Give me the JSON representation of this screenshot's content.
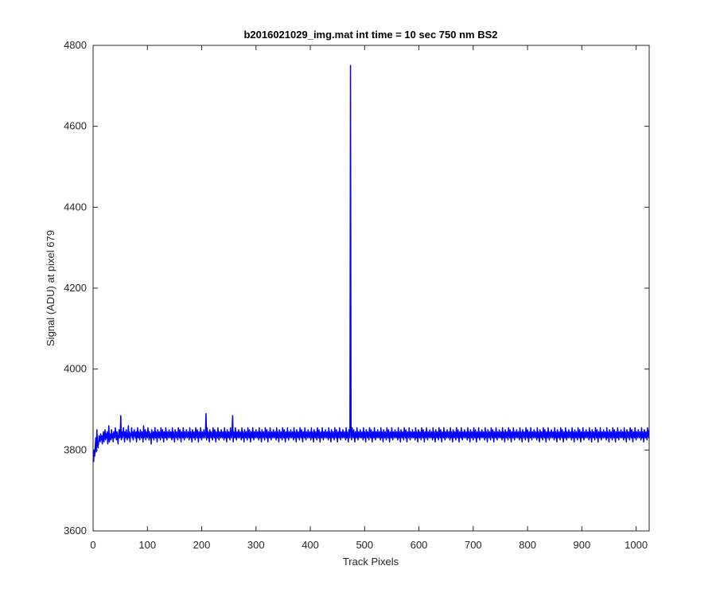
{
  "chart_data": {
    "type": "line",
    "title": "b2016021029_img.mat int time = 10 sec  750 nm BS2",
    "xlabel": "Track Pixels",
    "ylabel": "Signal (ADU) at pixel 679",
    "xlim": [
      0,
      1024
    ],
    "ylim": [
      3600,
      4800
    ],
    "xticks": [
      0,
      100,
      200,
      300,
      400,
      500,
      600,
      700,
      800,
      900,
      1000
    ],
    "yticks": [
      3600,
      3800,
      4000,
      4200,
      4400,
      4600,
      4800
    ],
    "grid": false,
    "legend": "none",
    "series": [
      {
        "color": "#0000ff",
        "x_start": 1,
        "x_step": 1,
        "values": [
          3770,
          3800,
          3785,
          3810,
          3830,
          3795,
          3850,
          3820,
          3805,
          3815,
          3835,
          3830,
          3820,
          3840,
          3825,
          3835,
          3815,
          3830,
          3845,
          3820,
          3835,
          3850,
          3825,
          3840,
          3830,
          3845,
          3815,
          3830,
          3860,
          3820,
          3840,
          3835,
          3825,
          3850,
          3830,
          3840,
          3820,
          3845,
          3835,
          3830,
          3855,
          3840,
          3825,
          3845,
          3830,
          3815,
          3840,
          3850,
          3830,
          3835,
          3885,
          3825,
          3845,
          3830,
          3840,
          3855,
          3835,
          3820,
          3845,
          3830,
          3850,
          3840,
          3825,
          3835,
          3860,
          3830,
          3845,
          3820,
          3840,
          3835,
          3855,
          3830,
          3845,
          3825,
          3840,
          3850,
          3835,
          3830,
          3845,
          3820,
          3840,
          3855,
          3830,
          3845,
          3835,
          3825,
          3850,
          3840,
          3830,
          3845,
          3835,
          3820,
          3860,
          3830,
          3840,
          3850,
          3825,
          3845,
          3835,
          3830,
          3855,
          3840,
          3825,
          3845,
          3830,
          3840,
          3815,
          3850,
          3835,
          3830,
          3845,
          3825,
          3840,
          3855,
          3830,
          3845,
          3835,
          3820,
          3850,
          3840,
          3830,
          3845,
          3835,
          3825,
          3855,
          3840,
          3830,
          3850,
          3835,
          3820,
          3845,
          3840,
          3830,
          3855,
          3835,
          3825,
          3845,
          3840,
          3830,
          3850,
          3835,
          3830,
          3845,
          3840,
          3825,
          3855,
          3830,
          3845,
          3835,
          3820,
          3850,
          3840,
          3830,
          3845,
          3835,
          3825,
          3855,
          3840,
          3830,
          3850,
          3835,
          3820,
          3845,
          3840,
          3830,
          3855,
          3835,
          3825,
          3845,
          3840,
          3830,
          3850,
          3835,
          3830,
          3845,
          3840,
          3825,
          3855,
          3830,
          3845,
          3835,
          3820,
          3850,
          3840,
          3830,
          3845,
          3835,
          3825,
          3855,
          3840,
          3830,
          3850,
          3835,
          3820,
          3845,
          3840,
          3830,
          3855,
          3835,
          3825,
          3845,
          3840,
          3830,
          3850,
          3835,
          3830,
          3845,
          3890,
          3825,
          3855,
          3830,
          3845,
          3835,
          3820,
          3850,
          3840,
          3830,
          3845,
          3835,
          3825,
          3855,
          3840,
          3830,
          3850,
          3835,
          3820,
          3845,
          3840,
          3830,
          3855,
          3835,
          3825,
          3845,
          3840,
          3830,
          3850,
          3835,
          3830,
          3845,
          3840,
          3825,
          3855,
          3830,
          3845,
          3835,
          3820,
          3850,
          3840,
          3830,
          3845,
          3835,
          3825,
          3855,
          3840,
          3830,
          3850,
          3885,
          3820,
          3845,
          3840,
          3830,
          3855,
          3835,
          3825,
          3845,
          3840,
          3830,
          3850,
          3835,
          3830,
          3845,
          3840,
          3825,
          3855,
          3830,
          3845,
          3835,
          3820,
          3850,
          3840,
          3830,
          3845,
          3835,
          3825,
          3855,
          3840,
          3830,
          3850,
          3835,
          3820,
          3845,
          3840,
          3830,
          3855,
          3835,
          3825,
          3845,
          3840,
          3830,
          3850,
          3835,
          3830,
          3845,
          3840,
          3825,
          3855,
          3830,
          3845,
          3835,
          3820,
          3850,
          3840,
          3830,
          3845,
          3835,
          3825,
          3855,
          3840,
          3830,
          3850,
          3835,
          3820,
          3845,
          3840,
          3830,
          3855,
          3835,
          3825,
          3845,
          3840,
          3830,
          3850,
          3835,
          3830,
          3845,
          3840,
          3825,
          3855,
          3830,
          3845,
          3835,
          3820,
          3850,
          3840,
          3830,
          3845,
          3835,
          3825,
          3855,
          3840,
          3830,
          3850,
          3835,
          3820,
          3845,
          3840,
          3830,
          3855,
          3835,
          3825,
          3845,
          3840,
          3830,
          3850,
          3835,
          3830,
          3845,
          3840,
          3825,
          3855,
          3830,
          3845,
          3835,
          3820,
          3850,
          3840,
          3830,
          3845,
          3835,
          3825,
          3855,
          3840,
          3830,
          3850,
          3835,
          3820,
          3845,
          3840,
          3830,
          3855,
          3835,
          3825,
          3845,
          3840,
          3830,
          3850,
          3835,
          3830,
          3845,
          3840,
          3825,
          3855,
          3830,
          3845,
          3835,
          3820,
          3850,
          3840,
          3830,
          3845,
          3835,
          3825,
          3855,
          3840,
          3830,
          3850,
          3835,
          3820,
          3845,
          3840,
          3830,
          3855,
          3835,
          3825,
          3845,
          3840,
          3830,
          3850,
          3835,
          3830,
          3845,
          3840,
          3825,
          3855,
          3830,
          3845,
          3835,
          3820,
          3850,
          3840,
          3830,
          3845,
          3835,
          3825,
          3855,
          3840,
          3830,
          3850,
          3835,
          3820,
          3845,
          3840,
          3830,
          3855,
          3835,
          3825,
          3845,
          3840,
          3830,
          3850,
          3835,
          3830,
          3845,
          3840,
          3825,
          3855,
          3830,
          3845,
          3835,
          3820,
          3850,
          3840,
          3830,
          4750,
          3850,
          3825,
          3855,
          3840,
          3830,
          3850,
          3835,
          3820,
          3845,
          3840,
          3830,
          3855,
          3835,
          3825,
          3845,
          3840,
          3830,
          3850,
          3835,
          3830,
          3845,
          3840,
          3825,
          3855,
          3830,
          3845,
          3835,
          3820,
          3850,
          3840,
          3830,
          3845,
          3835,
          3825,
          3855,
          3840,
          3830,
          3850,
          3835,
          3820,
          3845,
          3840,
          3830,
          3855,
          3835,
          3825,
          3845,
          3840,
          3830,
          3850,
          3835,
          3830,
          3845,
          3840,
          3825,
          3855,
          3830,
          3845,
          3835,
          3820,
          3850,
          3840,
          3830,
          3845,
          3835,
          3825,
          3855,
          3840,
          3830,
          3850,
          3835,
          3820,
          3845,
          3840,
          3830,
          3855,
          3835,
          3825,
          3845,
          3840,
          3830,
          3850,
          3835,
          3830,
          3845,
          3840,
          3825,
          3855,
          3830,
          3845,
          3835,
          3820,
          3850,
          3840,
          3830,
          3845,
          3835,
          3825,
          3855,
          3840,
          3830,
          3850,
          3835,
          3820,
          3845,
          3840,
          3830,
          3855,
          3835,
          3825,
          3845,
          3840,
          3830,
          3850,
          3835,
          3830,
          3845,
          3840,
          3825,
          3855,
          3830,
          3845,
          3835,
          3820,
          3850,
          3840,
          3830,
          3845,
          3835,
          3825,
          3855,
          3840,
          3830,
          3850,
          3835,
          3820,
          3845,
          3840,
          3830,
          3855,
          3835,
          3825,
          3845,
          3840,
          3830,
          3850,
          3835,
          3830,
          3845,
          3840,
          3825,
          3855,
          3830,
          3845,
          3835,
          3820,
          3850,
          3840,
          3830,
          3845,
          3835,
          3825,
          3855,
          3840,
          3830,
          3850,
          3835,
          3820,
          3845,
          3840,
          3830,
          3855,
          3835,
          3825,
          3845,
          3840,
          3830,
          3850,
          3835,
          3830,
          3845,
          3840,
          3825,
          3855,
          3830,
          3845,
          3835,
          3820,
          3850,
          3840,
          3830,
          3845,
          3835,
          3825,
          3855,
          3840,
          3830,
          3850,
          3835,
          3820,
          3845,
          3840,
          3830,
          3855,
          3835,
          3825,
          3845,
          3840,
          3830,
          3850,
          3835,
          3830,
          3845,
          3840,
          3825,
          3855,
          3830,
          3845,
          3835,
          3820,
          3850,
          3840,
          3830,
          3845,
          3835,
          3825,
          3855,
          3840,
          3830,
          3850,
          3835,
          3820,
          3845,
          3840,
          3830,
          3855,
          3835,
          3825,
          3845,
          3840,
          3830,
          3850,
          3835,
          3830,
          3845,
          3840,
          3825,
          3855,
          3830,
          3845,
          3835,
          3820,
          3850,
          3840,
          3830,
          3845,
          3835,
          3825,
          3855,
          3840,
          3830,
          3850,
          3835,
          3820,
          3845,
          3840,
          3830,
          3855,
          3835,
          3825,
          3845,
          3840,
          3830,
          3850,
          3835,
          3830,
          3845,
          3840,
          3825,
          3855,
          3830,
          3845,
          3835,
          3820,
          3850,
          3840,
          3830,
          3845,
          3835,
          3825,
          3855,
          3840,
          3830,
          3850,
          3835,
          3820,
          3845,
          3840,
          3830,
          3855,
          3835,
          3825,
          3845,
          3840,
          3830,
          3850,
          3835,
          3830,
          3845,
          3840,
          3825,
          3855,
          3830,
          3845,
          3835,
          3820,
          3850,
          3840,
          3830,
          3845,
          3835,
          3825,
          3855,
          3840,
          3830,
          3850,
          3835,
          3820,
          3845,
          3840,
          3830,
          3855,
          3835,
          3825,
          3845,
          3840,
          3830,
          3850,
          3835,
          3830,
          3845,
          3840,
          3825,
          3855,
          3830,
          3845,
          3835,
          3820,
          3850,
          3840,
          3830,
          3845,
          3835,
          3825,
          3855,
          3840,
          3830,
          3850,
          3835,
          3820,
          3845,
          3840,
          3830,
          3855,
          3835,
          3825,
          3845,
          3840,
          3830,
          3850,
          3835,
          3830,
          3845,
          3840,
          3825,
          3855,
          3830,
          3845,
          3835,
          3820,
          3850,
          3840,
          3830,
          3845,
          3835,
          3825,
          3855,
          3840,
          3830,
          3850,
          3835,
          3820,
          3845,
          3840,
          3830,
          3855,
          3835,
          3825,
          3845,
          3840,
          3830,
          3850,
          3835,
          3830,
          3845,
          3840,
          3825,
          3855,
          3830,
          3845,
          3835,
          3820,
          3850,
          3840,
          3830,
          3845,
          3835,
          3825,
          3855,
          3840,
          3830,
          3850,
          3835,
          3820,
          3845,
          3840,
          3830,
          3855,
          3835,
          3825,
          3845,
          3840,
          3830,
          3850,
          3835,
          3830,
          3845,
          3840,
          3825,
          3855,
          3830,
          3845,
          3835,
          3820,
          3850,
          3840,
          3830,
          3845,
          3835,
          3825,
          3855,
          3840,
          3830,
          3850,
          3835,
          3820,
          3845,
          3840,
          3830,
          3855,
          3835,
          3825,
          3845,
          3840,
          3830,
          3850,
          3835,
          3830,
          3845,
          3840,
          3825,
          3855,
          3830,
          3845,
          3835,
          3820,
          3850,
          3840,
          3830,
          3845,
          3835,
          3825,
          3855,
          3840,
          3830,
          3850,
          3835,
          3820,
          3845,
          3840,
          3830,
          3855,
          3835,
          3825,
          3845,
          3840,
          3830,
          3850,
          3835,
          3830,
          3845,
          3840,
          3825,
          3855,
          3830,
          3845,
          3835,
          3820,
          3850,
          3840,
          3830,
          3845,
          3835,
          3825,
          3855,
          3840,
          3830,
          3850,
          3835,
          3820,
          3845,
          3840,
          3830,
          3855,
          3835,
          3825,
          3845,
          3840,
          3830,
          3850,
          3835,
          3830,
          3845,
          3840,
          3825,
          3855,
          3830,
          3845,
          3835,
          3820,
          3850,
          3840,
          3830,
          3845,
          3835,
          3825,
          3855,
          3840,
          3830,
          3850,
          3835,
          3820,
          3845,
          3840,
          3830,
          3855,
          3835,
          3825,
          3845,
          3840,
          3830,
          3850,
          3835,
          3830,
          3845,
          3840,
          3825,
          3855,
          3830,
          3845,
          3835,
          3820,
          3850,
          3840,
          3830,
          3845,
          3835,
          3825,
          3855,
          3840,
          3830,
          3850,
          3835,
          3820,
          3845,
          3840,
          3830,
          3855,
          3835,
          3825,
          3845,
          3840,
          3830,
          3850,
          3835,
          3830,
          3845,
          3840,
          3825,
          3855,
          3830,
          3780
        ]
      }
    ]
  },
  "colors": {
    "line": "#0000ff",
    "axes": "#262626",
    "background": "#ffffff"
  }
}
